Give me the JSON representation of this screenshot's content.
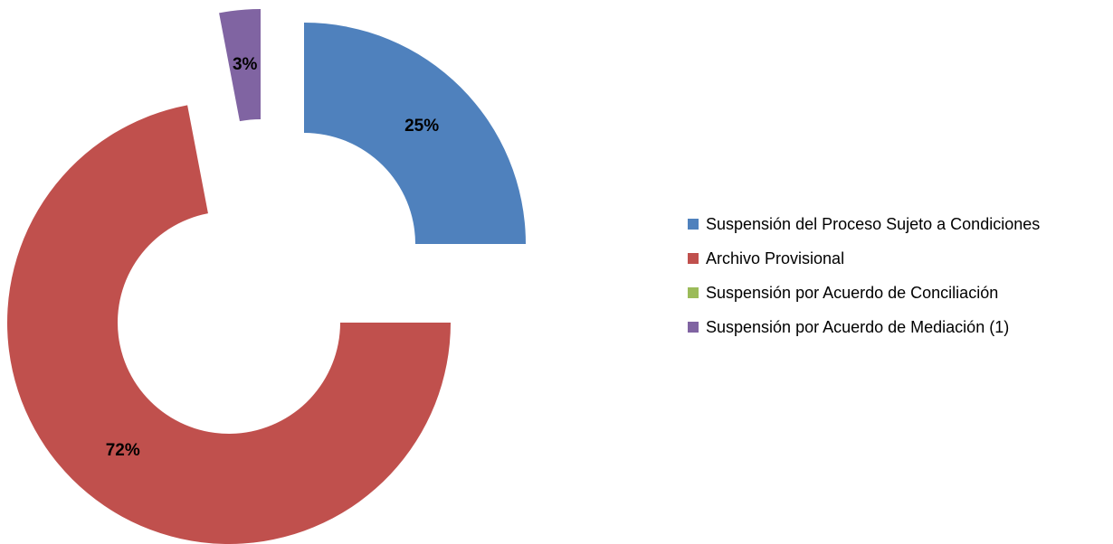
{
  "chart_data": {
    "type": "donut",
    "categories": [
      "Suspensión del Proceso Sujeto a Condiciones",
      "Archivo Provisional",
      "Suspensión por Acuerdo de Conciliación",
      "Suspensión por Acuerdo de Mediación (1)"
    ],
    "values": [
      25,
      72,
      0,
      3
    ],
    "value_labels": [
      "25%",
      "72%",
      null,
      "3%"
    ],
    "colors": [
      "#4f81bd",
      "#c0504d",
      "#9bbb59",
      "#8064a2"
    ],
    "legend": "right"
  }
}
